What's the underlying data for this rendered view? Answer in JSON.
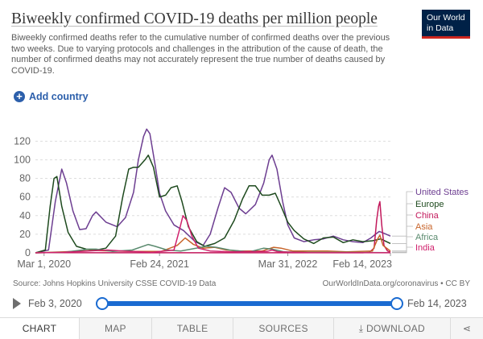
{
  "header": {
    "title": "Biweekly confirmed COVID-19 deaths per million people",
    "subtitle": "Biweekly confirmed deaths refer to the cumulative number of confirmed deaths over the previous two weeks. Due to varying protocols and challenges in the attribution of the cause of death, the number of confirmed deaths may not accurately represent the true number of deaths caused by COVID-19.",
    "logo_line1": "Our World",
    "logo_line2": "in Data"
  },
  "controls": {
    "add_country_label": "Add country"
  },
  "footer": {
    "source": "Source: Johns Hopkins University CSSE COVID-19 Data",
    "credit": "OurWorldInData.org/coronavirus • CC BY"
  },
  "timeline": {
    "start_label": "Feb 3, 2020",
    "end_label": "Feb 14, 2023",
    "start_fraction": 0,
    "end_fraction": 1
  },
  "tabs": [
    {
      "label": "CHART",
      "active": true
    },
    {
      "label": "MAP"
    },
    {
      "label": "TABLE"
    },
    {
      "label": "SOURCES"
    },
    {
      "label": "DOWNLOAD",
      "icon": "download-icon"
    },
    {
      "label": "",
      "icon": "share-icon"
    }
  ],
  "chart_data": {
    "type": "line",
    "xlim": [
      "2020-02-03",
      "2023-02-14"
    ],
    "ylim": [
      0,
      135
    ],
    "yticks": [
      0,
      20,
      40,
      60,
      80,
      100,
      120
    ],
    "xticks": [
      "2020-03-01",
      "2021-02-24",
      "2022-03-31",
      "2023-02-14"
    ],
    "xtick_labels": [
      "Mar 1, 2020",
      "Feb 24, 2021",
      "Mar 31, 2022",
      "Feb 14, 2023"
    ],
    "grid": "horizontal dashed",
    "legend": "right",
    "series": [
      {
        "name": "United States",
        "color": "#6d3e91",
        "points": [
          [
            "2020-02-03",
            0
          ],
          [
            "2020-03-15",
            3
          ],
          [
            "2020-04-05",
            55
          ],
          [
            "2020-04-25",
            90
          ],
          [
            "2020-05-10",
            75
          ],
          [
            "2020-05-30",
            45
          ],
          [
            "2020-06-20",
            25
          ],
          [
            "2020-07-10",
            26
          ],
          [
            "2020-07-30",
            40
          ],
          [
            "2020-08-10",
            44
          ],
          [
            "2020-09-10",
            33
          ],
          [
            "2020-10-15",
            28
          ],
          [
            "2020-11-10",
            38
          ],
          [
            "2020-12-05",
            65
          ],
          [
            "2020-12-20",
            100
          ],
          [
            "2021-01-05",
            125
          ],
          [
            "2021-01-15",
            133
          ],
          [
            "2021-01-25",
            128
          ],
          [
            "2021-02-10",
            95
          ],
          [
            "2021-02-24",
            64
          ],
          [
            "2021-03-15",
            45
          ],
          [
            "2021-04-10",
            30
          ],
          [
            "2021-05-10",
            24
          ],
          [
            "2021-06-15",
            12
          ],
          [
            "2021-07-10",
            8
          ],
          [
            "2021-08-01",
            20
          ],
          [
            "2021-08-25",
            48
          ],
          [
            "2021-09-15",
            70
          ],
          [
            "2021-10-05",
            65
          ],
          [
            "2021-10-30",
            48
          ],
          [
            "2021-11-20",
            42
          ],
          [
            "2021-12-20",
            52
          ],
          [
            "2022-01-15",
            75
          ],
          [
            "2022-02-01",
            100
          ],
          [
            "2022-02-10",
            105
          ],
          [
            "2022-02-25",
            90
          ],
          [
            "2022-03-15",
            55
          ],
          [
            "2022-03-31",
            30
          ],
          [
            "2022-04-20",
            16
          ],
          [
            "2022-05-20",
            12
          ],
          [
            "2022-06-20",
            14
          ],
          [
            "2022-07-20",
            15
          ],
          [
            "2022-08-20",
            18
          ],
          [
            "2022-09-20",
            14
          ],
          [
            "2022-10-20",
            12
          ],
          [
            "2022-11-20",
            11
          ],
          [
            "2022-12-15",
            16
          ],
          [
            "2023-01-10",
            23
          ],
          [
            "2023-01-25",
            21
          ],
          [
            "2023-02-14",
            18
          ]
        ]
      },
      {
        "name": "Europe",
        "color": "#1e4a1e",
        "points": [
          [
            "2020-02-03",
            0
          ],
          [
            "2020-03-05",
            3
          ],
          [
            "2020-03-20",
            50
          ],
          [
            "2020-04-01",
            80
          ],
          [
            "2020-04-10",
            82
          ],
          [
            "2020-04-25",
            50
          ],
          [
            "2020-05-15",
            22
          ],
          [
            "2020-06-10",
            7
          ],
          [
            "2020-07-10",
            4
          ],
          [
            "2020-08-10",
            3
          ],
          [
            "2020-09-10",
            5
          ],
          [
            "2020-10-10",
            18
          ],
          [
            "2020-11-01",
            60
          ],
          [
            "2020-11-20",
            90
          ],
          [
            "2020-12-05",
            92
          ],
          [
            "2020-12-20",
            92
          ],
          [
            "2021-01-10",
            100
          ],
          [
            "2021-01-20",
            105
          ],
          [
            "2021-02-05",
            92
          ],
          [
            "2021-02-24",
            60
          ],
          [
            "2021-03-15",
            62
          ],
          [
            "2021-04-01",
            70
          ],
          [
            "2021-04-20",
            72
          ],
          [
            "2021-05-05",
            55
          ],
          [
            "2021-05-25",
            28
          ],
          [
            "2021-06-20",
            12
          ],
          [
            "2021-07-15",
            7
          ],
          [
            "2021-08-15",
            10
          ],
          [
            "2021-09-15",
            16
          ],
          [
            "2021-10-15",
            35
          ],
          [
            "2021-11-10",
            58
          ],
          [
            "2021-11-30",
            72
          ],
          [
            "2021-12-20",
            72
          ],
          [
            "2022-01-10",
            62
          ],
          [
            "2022-02-01",
            62
          ],
          [
            "2022-02-20",
            64
          ],
          [
            "2022-03-10",
            50
          ],
          [
            "2022-03-31",
            33
          ],
          [
            "2022-04-20",
            24
          ],
          [
            "2022-05-20",
            15
          ],
          [
            "2022-06-20",
            10
          ],
          [
            "2022-07-20",
            16
          ],
          [
            "2022-08-20",
            17
          ],
          [
            "2022-09-20",
            11
          ],
          [
            "2022-10-20",
            14
          ],
          [
            "2022-11-20",
            12
          ],
          [
            "2022-12-20",
            13
          ],
          [
            "2023-01-15",
            15
          ],
          [
            "2023-02-14",
            10
          ]
        ]
      },
      {
        "name": "China",
        "color": "#c2185b",
        "points": [
          [
            "2020-02-03",
            0.2
          ],
          [
            "2020-02-20",
            0.4
          ],
          [
            "2020-03-10",
            0.2
          ],
          [
            "2022-11-20",
            0.1
          ],
          [
            "2022-12-10",
            0.5
          ],
          [
            "2022-12-25",
            5
          ],
          [
            "2023-01-02",
            35
          ],
          [
            "2023-01-08",
            50
          ],
          [
            "2023-01-12",
            55
          ],
          [
            "2023-01-18",
            30
          ],
          [
            "2023-01-25",
            8
          ],
          [
            "2023-02-05",
            2
          ],
          [
            "2023-02-14",
            0.8
          ]
        ]
      },
      {
        "name": "Asia",
        "color": "#c8642a",
        "points": [
          [
            "2020-02-03",
            0
          ],
          [
            "2020-05-01",
            1
          ],
          [
            "2020-08-01",
            2.5
          ],
          [
            "2020-10-01",
            2
          ],
          [
            "2020-12-15",
            1.5
          ],
          [
            "2021-03-01",
            1.5
          ],
          [
            "2021-04-20",
            8
          ],
          [
            "2021-05-15",
            16
          ],
          [
            "2021-06-10",
            9
          ],
          [
            "2021-07-10",
            5
          ],
          [
            "2021-08-15",
            6
          ],
          [
            "2021-09-20",
            3
          ],
          [
            "2021-11-01",
            2
          ],
          [
            "2022-01-10",
            2
          ],
          [
            "2022-02-15",
            6
          ],
          [
            "2022-03-10",
            5
          ],
          [
            "2022-04-15",
            2
          ],
          [
            "2022-08-01",
            2
          ],
          [
            "2022-10-01",
            1
          ],
          [
            "2022-12-20",
            2
          ],
          [
            "2023-01-05",
            15
          ],
          [
            "2023-01-12",
            19
          ],
          [
            "2023-01-22",
            8
          ],
          [
            "2023-02-14",
            2
          ]
        ]
      },
      {
        "name": "Africa",
        "color": "#5a8a6e",
        "points": [
          [
            "2020-02-03",
            0
          ],
          [
            "2020-05-01",
            0.5
          ],
          [
            "2020-07-20",
            4
          ],
          [
            "2020-08-10",
            4
          ],
          [
            "2020-10-01",
            1.5
          ],
          [
            "2020-12-01",
            3
          ],
          [
            "2021-01-20",
            9
          ],
          [
            "2021-02-10",
            7
          ],
          [
            "2021-03-20",
            3
          ],
          [
            "2021-05-01",
            2
          ],
          [
            "2021-07-20",
            7
          ],
          [
            "2021-08-20",
            6
          ],
          [
            "2021-10-01",
            3
          ],
          [
            "2021-12-01",
            1
          ],
          [
            "2022-01-15",
            5
          ],
          [
            "2022-02-10",
            4
          ],
          [
            "2022-03-20",
            1
          ],
          [
            "2022-06-01",
            0.5
          ],
          [
            "2022-09-01",
            0.5
          ],
          [
            "2023-02-14",
            0.2
          ]
        ]
      },
      {
        "name": "India",
        "color": "#d0216d",
        "points": [
          [
            "2020-02-03",
            0
          ],
          [
            "2020-05-01",
            0.5
          ],
          [
            "2020-09-15",
            3
          ],
          [
            "2020-11-01",
            2
          ],
          [
            "2021-02-01",
            0.5
          ],
          [
            "2021-04-10",
            3
          ],
          [
            "2021-04-25",
            22
          ],
          [
            "2021-05-08",
            40
          ],
          [
            "2021-05-20",
            35
          ],
          [
            "2021-06-05",
            18
          ],
          [
            "2021-06-25",
            5
          ],
          [
            "2021-08-01",
            2
          ],
          [
            "2021-10-01",
            1
          ],
          [
            "2022-01-25",
            1.5
          ],
          [
            "2022-02-10",
            3
          ],
          [
            "2022-03-01",
            1
          ],
          [
            "2022-06-01",
            0.3
          ],
          [
            "2023-02-14",
            0.1
          ]
        ]
      }
    ]
  }
}
